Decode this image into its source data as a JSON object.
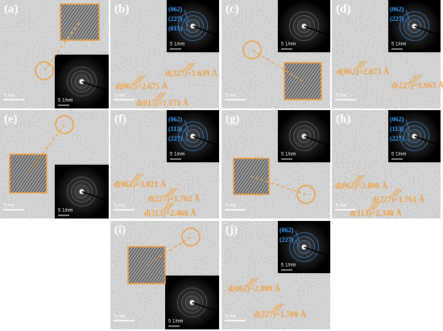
{
  "panels": [
    {
      "label": "(a)",
      "scale_bar": "5 nm",
      "fft_scale": "5 1/nm"
    },
    {
      "label": "(b)",
      "scale_bar": "5 nm",
      "fft_scale": "5 1/nm",
      "rings": [
        "(062)",
        "(227)",
        "(015)"
      ],
      "spacings": [
        "d(227)=1.639 Å",
        "d(062)=2.675 Å",
        "d(015)=1.173 Å"
      ]
    },
    {
      "label": "(c)",
      "scale_bar": "5 nm",
      "fft_scale": "5 1/nm"
    },
    {
      "label": "(d)",
      "scale_bar": "5 nm",
      "fft_scale": "5 1/nm",
      "rings": [
        "(062)",
        "(227)"
      ],
      "spacings": [
        "d(062)=2.873 Å",
        "d(227)=1.663 Å"
      ]
    },
    {
      "label": "(e)",
      "scale_bar": "5 nm",
      "fft_scale": "5 1/nm"
    },
    {
      "label": "(f)",
      "scale_bar": "5 nm",
      "fft_scale": "5 1/nm",
      "rings": [
        "(062)",
        "(113)",
        "(227)"
      ],
      "spacings": [
        "d(062)=3.021 Å",
        "d(227)=1.762 Å",
        "d(113)=2.468 Å"
      ]
    },
    {
      "label": "(g)",
      "scale_bar": "5 nm",
      "fft_scale": "5 1/nm"
    },
    {
      "label": "(h)",
      "scale_bar": "5 nm",
      "fft_scale": "5 1/nm",
      "rings": [
        "(062)",
        "(113)",
        "(227)"
      ],
      "spacings": [
        "d(062)=2.809 Å",
        "d(227)=1.761 Å",
        "d(113)=2.348 Å"
      ]
    },
    {
      "label": "(i)",
      "scale_bar": "5 nm",
      "fft_scale": "5 1/nm"
    },
    {
      "label": "(j)",
      "scale_bar": "5 nm",
      "fft_scale": "5 1/nm",
      "rings": [
        "(062)",
        "(227)"
      ],
      "spacings": [
        "d(062)=2.809 Å",
        "d(227)=1.760 Å"
      ]
    }
  ]
}
